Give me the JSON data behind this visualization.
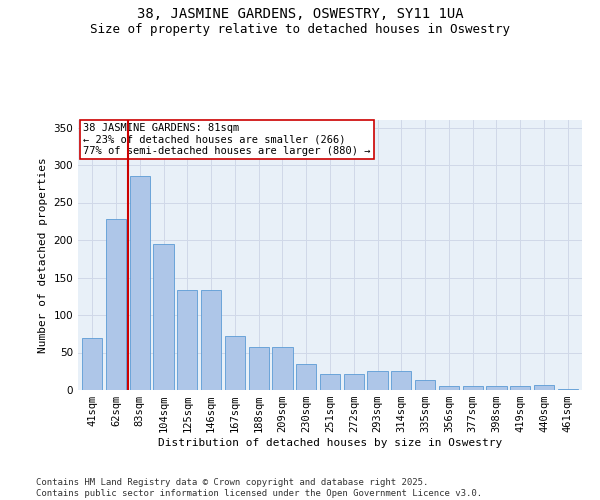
{
  "title": "38, JASMINE GARDENS, OSWESTRY, SY11 1UA",
  "subtitle": "Size of property relative to detached houses in Oswestry",
  "xlabel": "Distribution of detached houses by size in Oswestry",
  "ylabel": "Number of detached properties",
  "categories": [
    "41sqm",
    "62sqm",
    "83sqm",
    "104sqm",
    "125sqm",
    "146sqm",
    "167sqm",
    "188sqm",
    "209sqm",
    "230sqm",
    "251sqm",
    "272sqm",
    "293sqm",
    "314sqm",
    "335sqm",
    "356sqm",
    "377sqm",
    "398sqm",
    "419sqm",
    "440sqm",
    "461sqm"
  ],
  "values": [
    70,
    228,
    285,
    195,
    133,
    133,
    72,
    57,
    57,
    35,
    21,
    21,
    25,
    25,
    14,
    6,
    6,
    5,
    6,
    7,
    2
  ],
  "bar_color": "#aec6e8",
  "bar_edge_color": "#5b9bd5",
  "vline_x_index": 1.5,
  "vline_color": "#cc0000",
  "annotation_text": "38 JASMINE GARDENS: 81sqm\n← 23% of detached houses are smaller (266)\n77% of semi-detached houses are larger (880) →",
  "annotation_box_color": "#ffffff",
  "annotation_box_edge_color": "#cc0000",
  "ylim": [
    0,
    360
  ],
  "yticks": [
    0,
    50,
    100,
    150,
    200,
    250,
    300,
    350
  ],
  "background_color": "#ffffff",
  "grid_color": "#d0d8e8",
  "footer_text": "Contains HM Land Registry data © Crown copyright and database right 2025.\nContains public sector information licensed under the Open Government Licence v3.0.",
  "title_fontsize": 10,
  "subtitle_fontsize": 9,
  "axis_label_fontsize": 8,
  "tick_fontsize": 7.5,
  "annotation_fontsize": 7.5,
  "footer_fontsize": 6.5
}
